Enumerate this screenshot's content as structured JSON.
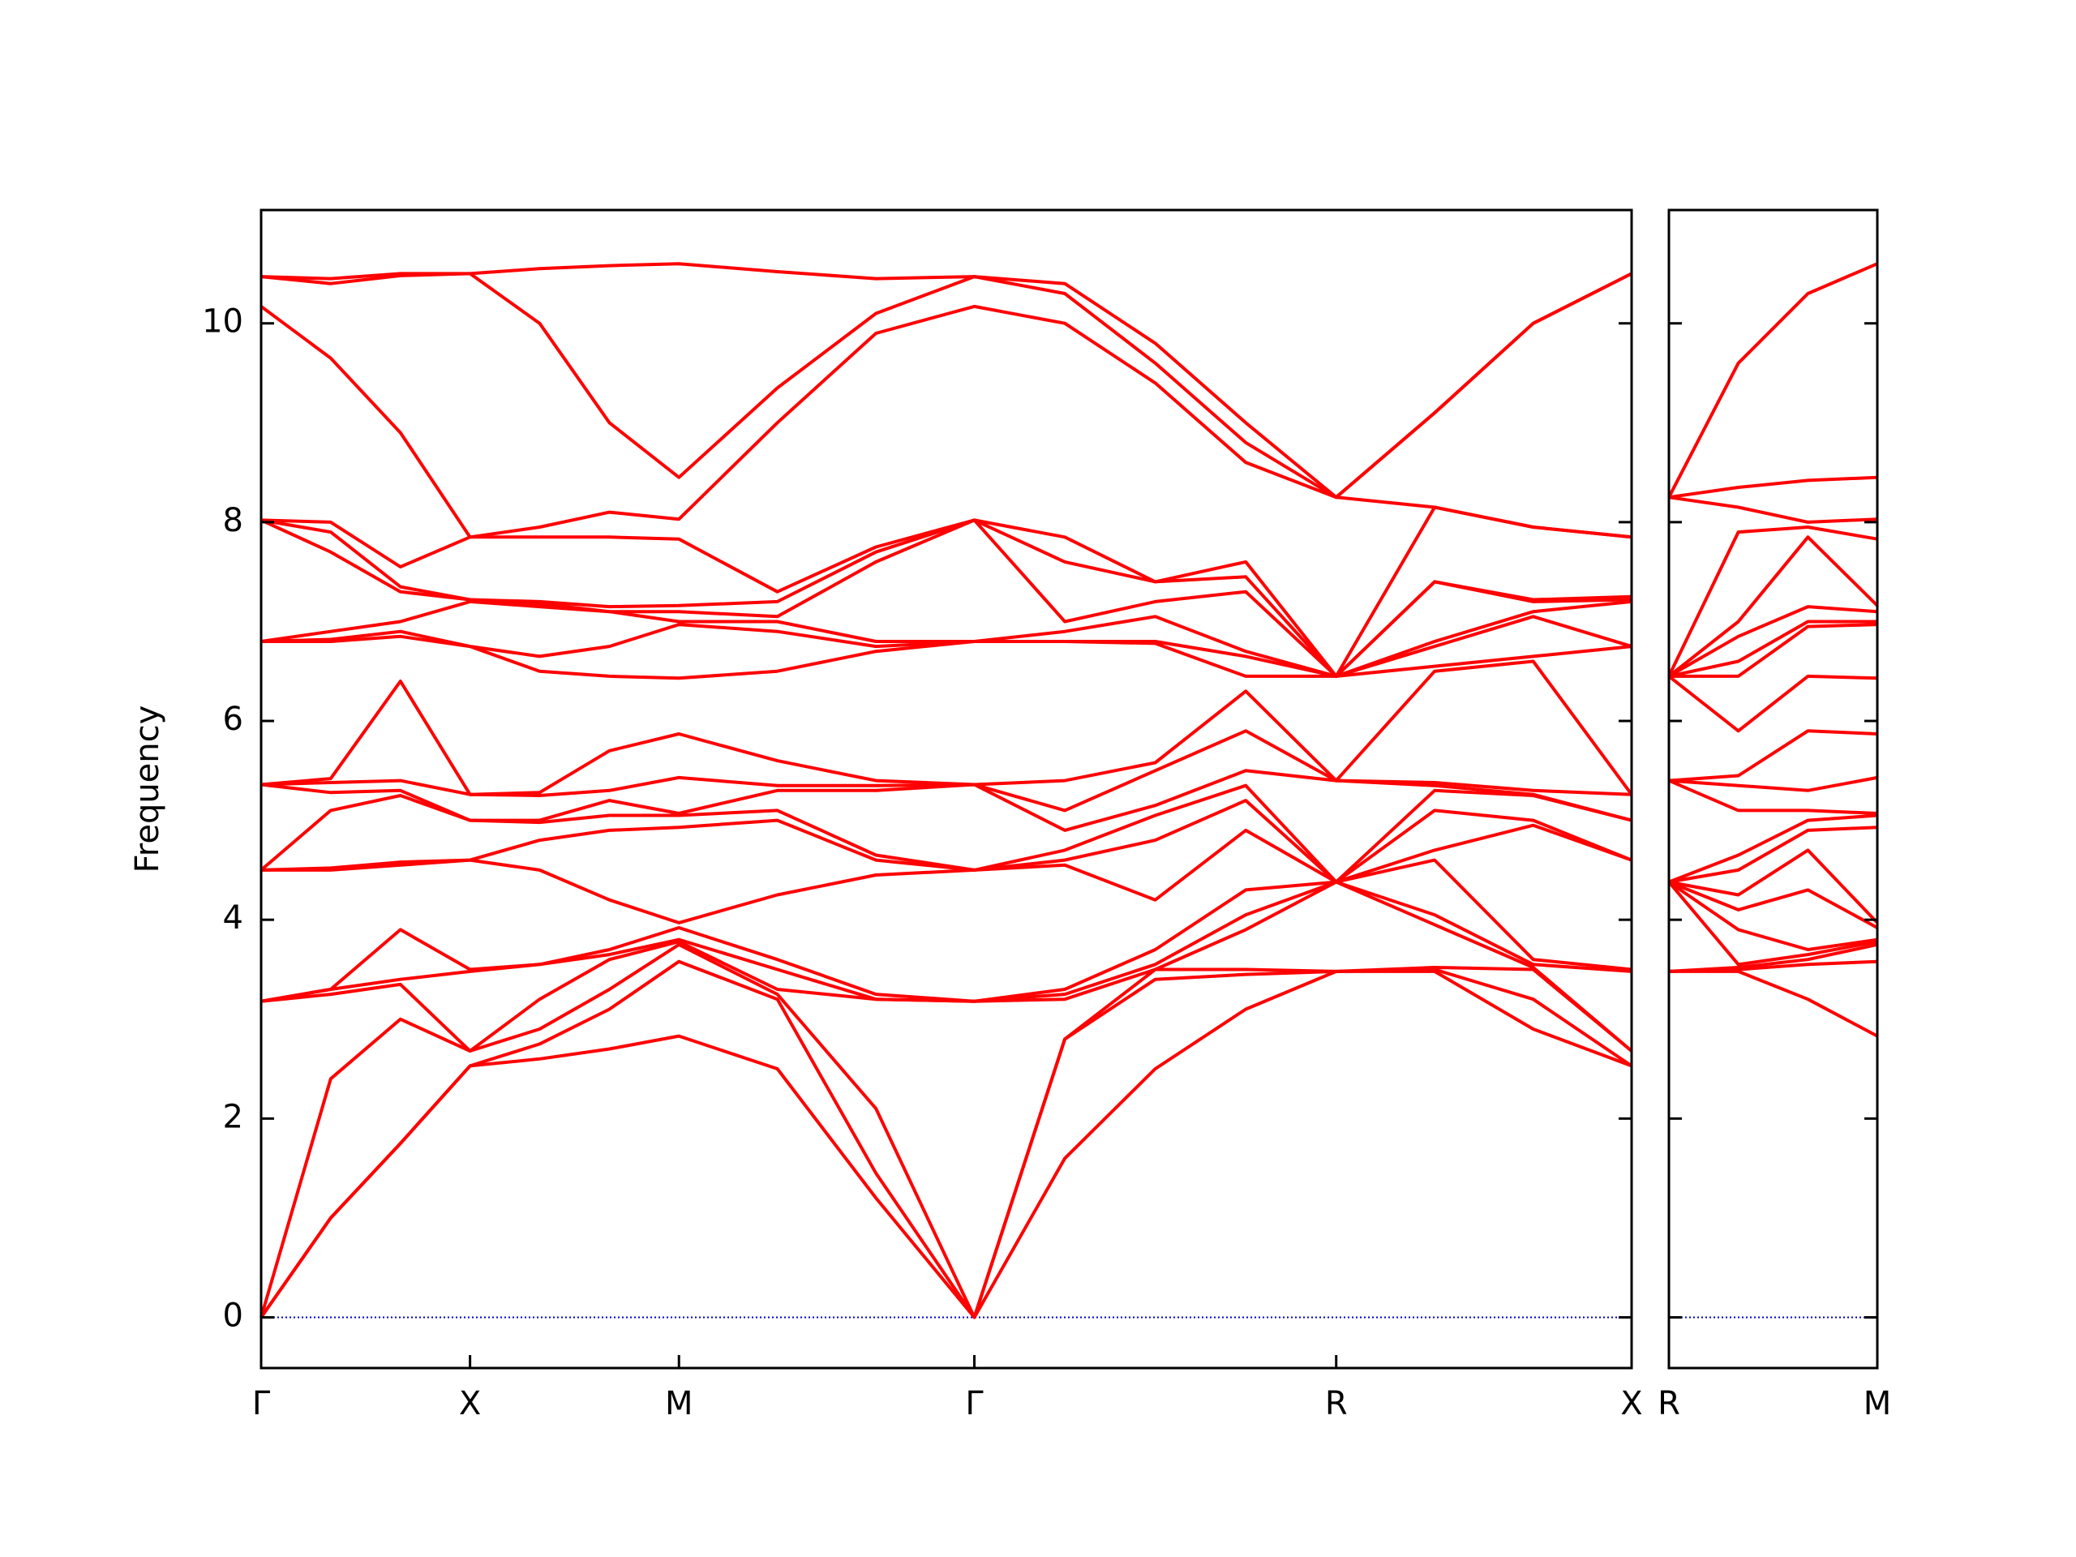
{
  "chart_data": [
    {
      "type": "line",
      "ylabel": "Frequency",
      "color": "#ff0000",
      "ylim": [
        -0.51,
        11.14
      ],
      "yticks": [
        0,
        2,
        4,
        6,
        8,
        10
      ],
      "xlim": [
        0,
        6.56
      ],
      "xticks": [
        {
          "value": 0,
          "label": "Γ"
        },
        {
          "value": 1,
          "label": "X"
        },
        {
          "value": 2,
          "label": "M"
        },
        {
          "value": 3.414,
          "label": "Γ"
        },
        {
          "value": 5.146,
          "label": "R"
        },
        {
          "value": 6.56,
          "label": "X"
        }
      ],
      "hline": {
        "y": 0,
        "color": "#0000cc"
      },
      "x": [
        0,
        0.333,
        0.667,
        1,
        1.333,
        1.667,
        2,
        2.471,
        2.943,
        3.414,
        3.847,
        4.28,
        4.713,
        5.146,
        5.617,
        6.089,
        6.56
      ],
      "values": [
        [
          0,
          0,
          0,
          3.18,
          3.18,
          3.18,
          4.5,
          4.5,
          4.5,
          5.36,
          5.36,
          5.36,
          6.8,
          6.8,
          6.8,
          8.02,
          8.02,
          8.02,
          10.17,
          10.47,
          10.47
        ],
        [
          1.0,
          1.0,
          2.4,
          3.25,
          3.3,
          3.3,
          4.5,
          4.52,
          5.1,
          5.28,
          5.38,
          5.42,
          6.8,
          6.82,
          6.9,
          7.7,
          7.9,
          8.0,
          9.65,
          10.4,
          10.45
        ],
        [
          1.75,
          1.75,
          3.0,
          3.35,
          3.4,
          3.9,
          4.55,
          4.58,
          5.25,
          5.3,
          5.4,
          6.4,
          6.85,
          6.9,
          7.0,
          7.3,
          7.35,
          7.55,
          8.9,
          10.48,
          10.5
        ],
        [
          2.53,
          2.53,
          2.68,
          2.68,
          3.48,
          3.5,
          4.6,
          4.6,
          5.0,
          5.0,
          5.26,
          5.26,
          6.75,
          6.75,
          7.2,
          7.22,
          7.22,
          7.85,
          7.85,
          10.5,
          10.5
        ],
        [
          2.6,
          2.75,
          2.9,
          3.2,
          3.55,
          3.55,
          4.5,
          4.8,
          4.98,
          5.0,
          5.25,
          5.28,
          6.5,
          6.65,
          7.15,
          7.18,
          7.2,
          7.85,
          7.95,
          10.0,
          10.55
        ],
        [
          2.7,
          3.1,
          3.3,
          3.6,
          3.65,
          3.7,
          4.2,
          4.9,
          5.05,
          5.2,
          5.3,
          5.7,
          6.45,
          6.75,
          7.1,
          7.1,
          7.15,
          7.85,
          8.1,
          9.0,
          10.58
        ],
        [
          2.83,
          3.58,
          3.75,
          3.78,
          3.8,
          3.92,
          3.97,
          4.93,
          5.05,
          5.07,
          5.43,
          5.87,
          6.43,
          6.97,
          7.0,
          7.1,
          7.16,
          7.83,
          8.03,
          8.45,
          10.6
        ],
        [
          2.5,
          3.2,
          3.25,
          3.3,
          3.5,
          3.6,
          4.25,
          5.0,
          5.1,
          5.3,
          5.35,
          5.6,
          6.5,
          6.9,
          7.0,
          7.05,
          7.2,
          7.3,
          9.0,
          9.35,
          10.52
        ],
        [
          1.2,
          1.45,
          2.1,
          3.2,
          3.2,
          3.25,
          4.45,
          4.6,
          4.65,
          5.3,
          5.35,
          5.4,
          6.7,
          6.75,
          6.8,
          7.6,
          7.7,
          7.75,
          9.9,
          10.1,
          10.45
        ],
        [
          0,
          0,
          0,
          3.18,
          3.18,
          3.18,
          4.5,
          4.5,
          4.5,
          5.36,
          5.36,
          5.36,
          6.8,
          6.8,
          6.8,
          8.02,
          8.02,
          8.02,
          10.17,
          10.47,
          10.47
        ],
        [
          1.6,
          2.8,
          2.8,
          3.2,
          3.25,
          3.3,
          4.55,
          4.6,
          4.7,
          4.9,
          5.1,
          5.4,
          6.8,
          6.8,
          6.9,
          7.0,
          7.6,
          7.85,
          10.0,
          10.3,
          10.4
        ],
        [
          2.5,
          3.4,
          3.5,
          3.5,
          3.55,
          3.7,
          4.2,
          4.8,
          5.05,
          5.15,
          5.5,
          5.58,
          6.78,
          6.8,
          7.05,
          7.2,
          7.4,
          7.4,
          9.4,
          9.6,
          9.8
        ],
        [
          3.1,
          3.45,
          3.5,
          3.9,
          4.05,
          4.3,
          4.9,
          5.2,
          5.35,
          5.5,
          5.9,
          6.3,
          6.45,
          6.65,
          6.7,
          7.3,
          7.45,
          7.6,
          8.6,
          8.8,
          9.0
        ],
        [
          3.48,
          3.48,
          3.48,
          4.38,
          4.38,
          4.38,
          4.38,
          4.38,
          4.38,
          5.4,
          5.4,
          5.4,
          6.45,
          6.45,
          6.45,
          6.45,
          6.45,
          6.45,
          8.25,
          8.25,
          8.25
        ],
        [
          3.48,
          3.5,
          3.52,
          3.95,
          4.05,
          4.6,
          4.7,
          5.1,
          5.3,
          5.35,
          5.38,
          6.5,
          6.55,
          6.75,
          6.8,
          7.4,
          7.4,
          8.15,
          8.15,
          9.1,
          9.1
        ],
        [
          2.9,
          3.2,
          3.5,
          3.52,
          3.55,
          3.6,
          4.95,
          5.0,
          5.25,
          5.26,
          5.3,
          6.6,
          6.65,
          7.05,
          7.1,
          7.2,
          7.22,
          7.95,
          7.95,
          10.0,
          10.0
        ],
        [
          2.53,
          2.53,
          2.68,
          2.68,
          3.48,
          3.5,
          4.6,
          4.6,
          5.0,
          5.0,
          5.26,
          5.26,
          6.75,
          6.75,
          7.2,
          7.22,
          7.25,
          7.85,
          7.85,
          10.5,
          10.5
        ]
      ]
    },
    {
      "type": "line",
      "color": "#ff0000",
      "ylim": [
        -0.51,
        11.14
      ],
      "yticks": [
        0,
        2,
        4,
        6,
        8,
        10
      ],
      "xlim": [
        0,
        1
      ],
      "xticks": [
        {
          "value": 0,
          "label": "R"
        },
        {
          "value": 1,
          "label": "M"
        }
      ],
      "hline": {
        "y": 0,
        "color": "#0000cc"
      },
      "x": [
        0,
        0.333,
        0.667,
        1
      ],
      "values": [
        [
          3.48,
          3.48,
          3.48,
          4.38,
          4.38,
          4.38,
          4.38,
          4.38,
          4.38,
          5.4,
          5.4,
          5.4,
          6.45,
          6.45,
          6.45,
          6.45,
          6.45,
          6.45,
          8.25,
          8.25,
          8.25
        ],
        [
          3.48,
          3.5,
          3.52,
          3.55,
          3.9,
          4.1,
          4.25,
          4.5,
          4.65,
          5.1,
          5.35,
          5.45,
          5.9,
          6.45,
          6.6,
          6.85,
          7.0,
          7.9,
          8.15,
          8.35,
          9.6
        ],
        [
          3.2,
          3.55,
          3.6,
          3.65,
          3.7,
          4.3,
          4.7,
          4.9,
          5.0,
          5.1,
          5.3,
          5.9,
          6.45,
          6.95,
          7.0,
          7.15,
          7.85,
          7.95,
          8.0,
          8.42,
          10.3
        ],
        [
          2.83,
          3.58,
          3.75,
          3.78,
          3.8,
          3.92,
          3.97,
          4.93,
          5.05,
          5.07,
          5.43,
          5.87,
          6.43,
          6.97,
          7.0,
          7.1,
          7.16,
          7.83,
          8.03,
          8.45,
          10.6
        ]
      ]
    }
  ]
}
